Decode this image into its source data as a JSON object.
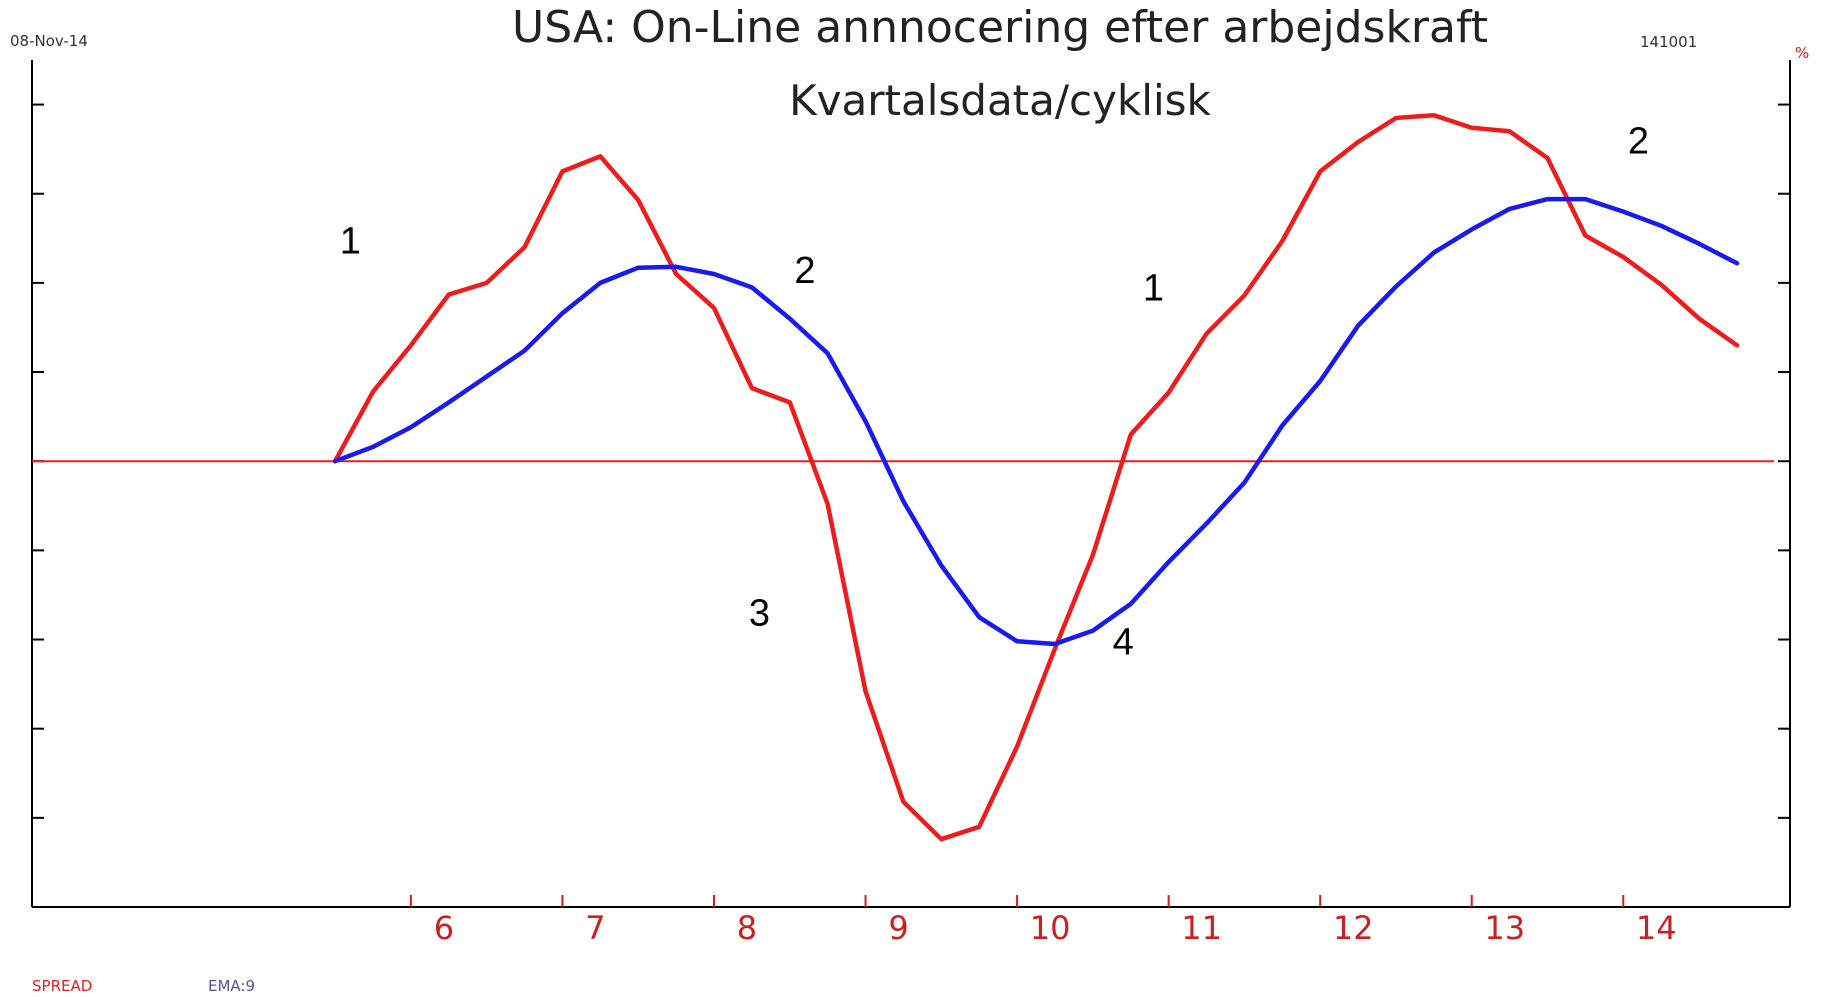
{
  "header": {
    "date": "08-Nov-14",
    "code": "141001",
    "unit": "%"
  },
  "chart_data": {
    "type": "line",
    "title": "USA: On-Line annnocering efter arbejdskraft",
    "subtitle": "Kvartalsdata/cyklisk",
    "x_tick_labels": [
      "6",
      "7",
      "8",
      "9",
      "10",
      "11",
      "12",
      "13",
      "14"
    ],
    "x_tick_positions": [
      6,
      7,
      8,
      9,
      10,
      11,
      12,
      13,
      14
    ],
    "xlim": [
      3.5,
      15.1
    ],
    "ylim": [
      -5,
      4.5
    ],
    "y_ticks": [
      -4,
      -3,
      -2,
      -1,
      0,
      1,
      2,
      3,
      4
    ],
    "zero_line": 0,
    "grid": false,
    "series": [
      {
        "name": "SPREAD",
        "color": "#ee1c1c",
        "x": [
          5.5,
          5.75,
          6.0,
          6.25,
          6.5,
          6.75,
          7.0,
          7.25,
          7.5,
          7.75,
          8.0,
          8.25,
          8.5,
          8.75,
          9.0,
          9.25,
          9.5,
          9.75,
          10.0,
          10.25,
          10.5,
          10.75,
          11.0,
          11.25,
          11.5,
          11.75,
          12.0,
          12.25,
          12.5,
          12.75,
          13.0,
          13.25,
          13.5,
          13.75,
          14.0,
          14.25,
          14.5,
          14.75
        ],
        "values": [
          0.0,
          0.78,
          1.3,
          1.87,
          2.0,
          2.4,
          3.25,
          3.42,
          2.93,
          2.1,
          1.72,
          0.82,
          0.66,
          -0.48,
          -2.58,
          -3.82,
          -4.24,
          -4.1,
          -3.2,
          -2.1,
          -1.05,
          0.3,
          0.77,
          1.43,
          1.86,
          2.47,
          3.25,
          3.58,
          3.85,
          3.88,
          3.74,
          3.7,
          3.4,
          2.53,
          2.29,
          1.98,
          1.6,
          1.3
        ]
      },
      {
        "name": "EMA:9",
        "color": "#1a1aee",
        "x": [
          5.5,
          5.75,
          6.0,
          6.25,
          6.5,
          6.75,
          7.0,
          7.25,
          7.5,
          7.75,
          8.0,
          8.25,
          8.5,
          8.75,
          9.0,
          9.25,
          9.5,
          9.75,
          10.0,
          10.25,
          10.5,
          10.75,
          11.0,
          11.25,
          11.5,
          11.75,
          12.0,
          12.25,
          12.5,
          12.75,
          13.0,
          13.25,
          13.5,
          13.75,
          14.0,
          14.25,
          14.5,
          14.75
        ],
        "values": [
          0.0,
          0.16,
          0.38,
          0.66,
          0.95,
          1.24,
          1.66,
          2.0,
          2.17,
          2.18,
          2.1,
          1.95,
          1.6,
          1.21,
          0.45,
          -0.45,
          -1.17,
          -1.75,
          -2.02,
          -2.05,
          -1.9,
          -1.6,
          -1.13,
          -0.7,
          -0.24,
          0.4,
          0.9,
          1.52,
          1.96,
          2.34,
          2.6,
          2.83,
          2.94,
          2.94,
          2.8,
          2.64,
          2.44,
          2.22
        ]
      }
    ],
    "annotations": [
      {
        "text": "1",
        "x": 5.6,
        "y": 2.33
      },
      {
        "text": "2",
        "x": 8.6,
        "y": 2.0
      },
      {
        "text": "3",
        "x": 8.3,
        "y": -1.84
      },
      {
        "text": "1",
        "x": 10.9,
        "y": 1.8
      },
      {
        "text": "4",
        "x": 10.7,
        "y": -2.17
      },
      {
        "text": "2",
        "x": 14.1,
        "y": 3.45
      }
    ]
  },
  "legend": {
    "items": [
      {
        "label": "SPREAD",
        "color": "#ee1c1c"
      },
      {
        "label": "EMA:9",
        "color": "#555599"
      }
    ]
  }
}
